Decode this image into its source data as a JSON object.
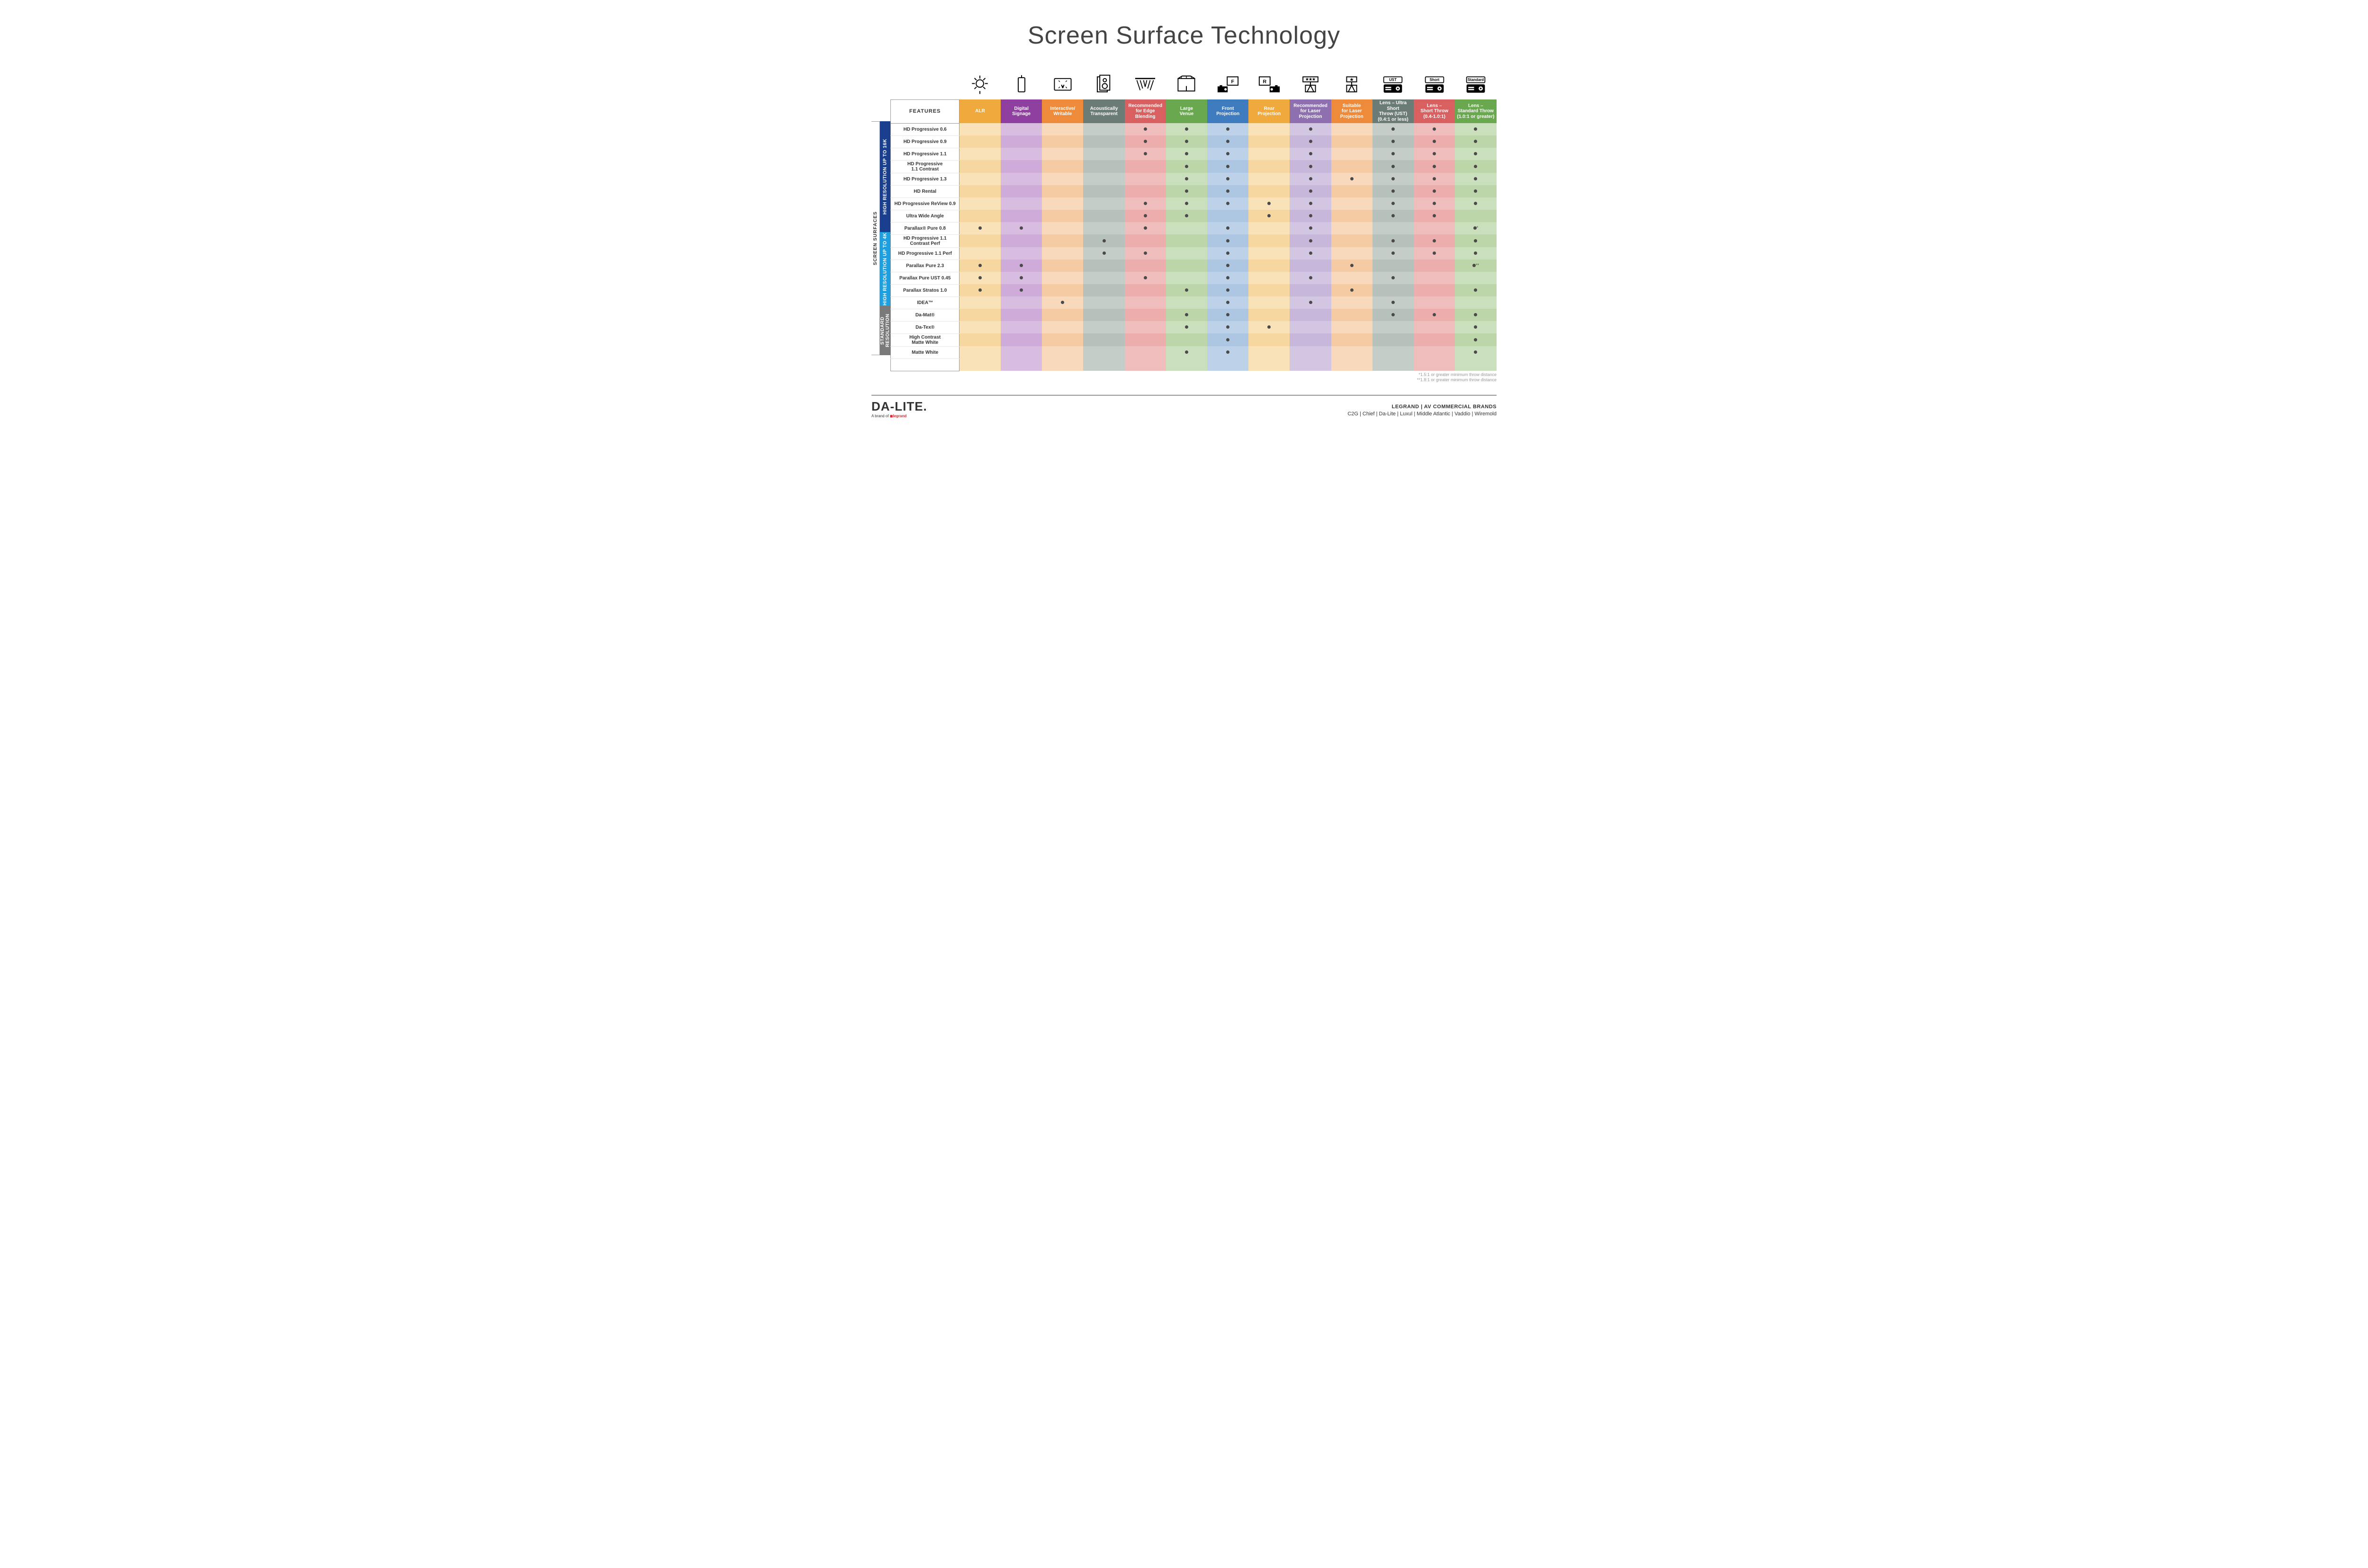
{
  "title": "Screen Surface Technology",
  "colors": {
    "group_16k": "#1b3f8f",
    "group_4k": "#1ea0e0",
    "group_std": "#7a7a7a",
    "dot": "#4a4a4a"
  },
  "featuresLabel": "FEATURES",
  "sideOuterLabel": "SCREEN SURFACES",
  "columns": [
    {
      "key": "alr",
      "label": "ALR",
      "hdr": "#f0a93c",
      "c1": "#f9e2b8",
      "c2": "#f6d79f"
    },
    {
      "key": "signage",
      "label": "Digital\nSignage",
      "hdr": "#8e3fa0",
      "c1": "#d9bde0",
      "c2": "#ceabd8"
    },
    {
      "key": "writable",
      "label": "Interactive/\nWritable",
      "hdr": "#ed8b3b",
      "c1": "#f8d9bb",
      "c2": "#f5cba4"
    },
    {
      "key": "acoustic",
      "label": "Acoustically\nTransparent",
      "hdr": "#6b7b75",
      "c1": "#c5cdc9",
      "c2": "#b7c1bc"
    },
    {
      "key": "edge",
      "label": "Recommended\nfor Edge\nBlending",
      "hdr": "#d86060",
      "c1": "#efbebc",
      "c2": "#ebaeac"
    },
    {
      "key": "large",
      "label": "Large\nVenue",
      "hdr": "#6aa84f",
      "c1": "#cadfbb",
      "c2": "#bcd6aa"
    },
    {
      "key": "front",
      "label": "Front\nProjection",
      "hdr": "#3f7bbf",
      "c1": "#bdd1e8",
      "c2": "#adc6e2"
    },
    {
      "key": "rear",
      "label": "Rear\nProjection",
      "hdr": "#f0a93c",
      "c1": "#f9e2b8",
      "c2": "#f6d79f"
    },
    {
      "key": "reclaser",
      "label": "Recommended\nfor Laser\nProjection",
      "hdr": "#8e6fb0",
      "c1": "#d3c6e2",
      "c2": "#c7b7da"
    },
    {
      "key": "suitlaser",
      "label": "Suitable\nfor Laser\nProjection",
      "hdr": "#ed8b3b",
      "c1": "#f8d9bb",
      "c2": "#f5cba4"
    },
    {
      "key": "ust",
      "label": "Lens – Ultra Short\nThrow (UST)\n(0.4:1 or less)",
      "hdr": "#6b7b75",
      "c1": "#c5cdc9",
      "c2": "#b7c1bc"
    },
    {
      "key": "short",
      "label": "Lens –\nShort Throw\n(0.4-1.0:1)",
      "hdr": "#d86060",
      "c1": "#efbebc",
      "c2": "#ebaeac"
    },
    {
      "key": "std",
      "label": "Lens –\nStandard Throw\n(1.0:1 or greater)",
      "hdr": "#6aa84f",
      "c1": "#cadfbb",
      "c2": "#bcd6aa"
    }
  ],
  "groups": [
    {
      "label": "HIGH RESOLUTION UP TO 16K",
      "color": "#1b3f8f",
      "rows": [
        {
          "name": "HD Progressive 0.6",
          "dots": {
            "edge": 1,
            "large": 1,
            "front": 1,
            "reclaser": 1,
            "ust": 1,
            "short": 1,
            "std": 1
          }
        },
        {
          "name": "HD Progressive 0.9",
          "dots": {
            "edge": 1,
            "large": 1,
            "front": 1,
            "reclaser": 1,
            "ust": 1,
            "short": 1,
            "std": 1
          }
        },
        {
          "name": "HD Progressive 1.1",
          "dots": {
            "edge": 1,
            "large": 1,
            "front": 1,
            "reclaser": 1,
            "ust": 1,
            "short": 1,
            "std": 1
          }
        },
        {
          "name": "HD Progressive\n1.1 Contrast",
          "dots": {
            "large": 1,
            "front": 1,
            "reclaser": 1,
            "ust": 1,
            "short": 1,
            "std": 1
          }
        },
        {
          "name": "HD Progressive 1.3",
          "dots": {
            "large": 1,
            "front": 1,
            "reclaser": 1,
            "suitlaser": 1,
            "ust": 1,
            "short": 1,
            "std": 1
          }
        },
        {
          "name": "HD Rental",
          "dots": {
            "large": 1,
            "front": 1,
            "reclaser": 1,
            "ust": 1,
            "short": 1,
            "std": 1
          }
        },
        {
          "name": "HD Progressive ReView 0.9",
          "dots": {
            "edge": 1,
            "large": 1,
            "front": 1,
            "rear": 1,
            "reclaser": 1,
            "ust": 1,
            "short": 1,
            "std": 1
          }
        },
        {
          "name": "Ultra Wide Angle",
          "dots": {
            "edge": 1,
            "large": 1,
            "rear": 1,
            "reclaser": 1,
            "ust": 1,
            "short": 1
          }
        },
        {
          "name": "Parallax® Pure 0.8",
          "dots": {
            "alr": 1,
            "signage": 1,
            "edge": 1,
            "front": 1,
            "reclaser": 1,
            "std": "*"
          }
        }
      ]
    },
    {
      "label": "HIGH RESOLUTION UP TO 4K",
      "color": "#1ea0e0",
      "rows": [
        {
          "name": "HD Progressive 1.1\nContrast Perf",
          "dots": {
            "acoustic": 1,
            "front": 1,
            "reclaser": 1,
            "ust": 1,
            "short": 1,
            "std": 1
          }
        },
        {
          "name": "HD Progressive 1.1 Perf",
          "dots": {
            "acoustic": 1,
            "edge": 1,
            "front": 1,
            "reclaser": 1,
            "ust": 1,
            "short": 1,
            "std": 1
          }
        },
        {
          "name": "Parallax Pure 2.3",
          "dots": {
            "alr": 1,
            "signage": 1,
            "front": 1,
            "suitlaser": 1,
            "std": "**"
          }
        },
        {
          "name": "Parallax Pure UST 0.45",
          "dots": {
            "alr": 1,
            "signage": 1,
            "edge": 1,
            "front": 1,
            "reclaser": 1,
            "ust": 1
          }
        },
        {
          "name": "Parallax Stratos 1.0",
          "dots": {
            "alr": 1,
            "signage": 1,
            "large": 1,
            "front": 1,
            "suitlaser": 1,
            "std": 1
          }
        },
        {
          "name": "IDEA™",
          "dots": {
            "writable": 1,
            "front": 1,
            "reclaser": 1,
            "ust": 1
          }
        }
      ]
    },
    {
      "label": "STANDARD\nRESOLUTION",
      "color": "#7a7a7a",
      "rows": [
        {
          "name": "Da-Mat®",
          "dots": {
            "large": 1,
            "front": 1,
            "ust": 1,
            "short": 1,
            "std": 1
          }
        },
        {
          "name": "Da-Tex®",
          "dots": {
            "large": 1,
            "front": 1,
            "rear": 1,
            "std": 1
          }
        },
        {
          "name": "High Contrast\nMatte White",
          "dots": {
            "front": 1,
            "std": 1
          }
        },
        {
          "name": "Matte White",
          "dots": {
            "large": 1,
            "front": 1,
            "std": 1
          }
        }
      ]
    }
  ],
  "footnotes": [
    "*1.5:1 or greater minimum throw distance",
    "**1.8:1 or greater minimum throw distance"
  ],
  "footer": {
    "logo": "DA-LITE.",
    "tagline_pre": "A brand of ",
    "tagline_brand": "legrand",
    "right_line1": "LEGRAND | AV COMMERCIAL BRANDS",
    "right_line2": "C2G  |  Chief  |  Da-Lite  |  Luxul  |  Middle Atlantic  |  Vaddio  |  Wiremold"
  },
  "iconLabels": {
    "ust": "UST",
    "short": "Short",
    "std": "Standard",
    "front": "F",
    "rear": "R"
  }
}
